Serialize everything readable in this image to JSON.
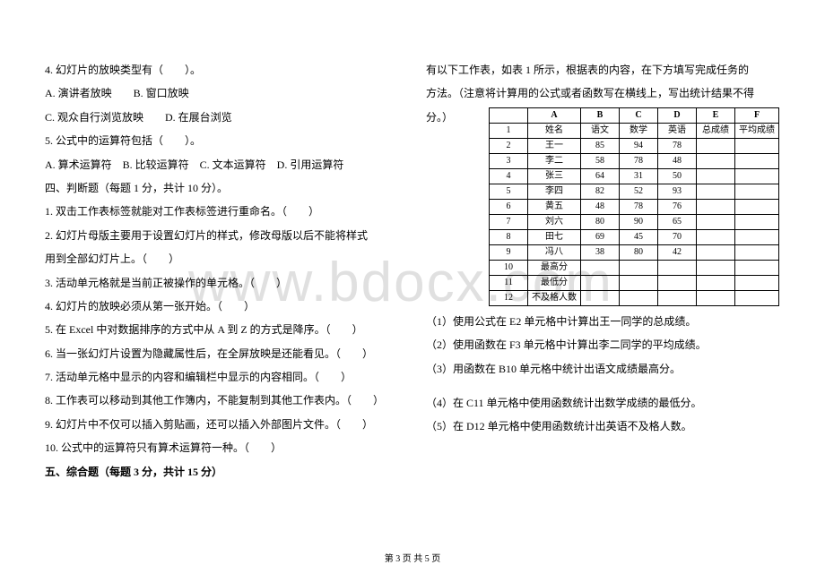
{
  "watermark": "www.bdocx.com",
  "footer": "第 3 页 共 5 页",
  "left": {
    "q4": "4. 幻灯片的放映类型有（　　）。",
    "q4a": "A. 演讲者放映　　B. 窗口放映",
    "q4b": "C. 观众自行浏览放映　　D. 在展台浏览",
    "q5": "5. 公式中的运算符包括（　　）。",
    "q5a": "A. 算术运算符　B. 比较运算符　C. 文本运算符　D. 引用运算符",
    "sec4": "四、判断题（每题 1 分，共计 10 分）。",
    "j1": "1. 双击工作表标签就能对工作表标签进行重命名。（　　）",
    "j2": "2. 幻灯片母版主要用于设置幻灯片的样式，修改母版以后不能将样式",
    "j2b": "用到全部幻灯片上。（　　）",
    "j3": "3. 活动单元格就是当前正被操作的单元格。（　　）",
    "j4": "4. 幻灯片的放映必须从第一张开始。（　　）",
    "j5": "5. 在 Excel 中对数据排序的方式中从 A 到 Z 的方式是降序。（　　）",
    "j6": "6. 当一张幻灯片设置为隐藏属性后，在全屏放映是还能看见。（　　）",
    "j7": "7. 活动单元格中显示的内容和编辑栏中显示的内容相同。（　　）",
    "j8": "8. 工作表可以移动到其他工作簿内，不能复制到其他工作表内。（　　）",
    "j9": "9. 幻灯片中不仅可以插入剪贴画，还可以插入外部图片文件。（　　）",
    "j10": "10. 公式中的运算符只有算术运算符一种。（　　）",
    "sec5": "五、综合题（每题 3 分，共计 15 分）"
  },
  "right": {
    "intro1": "有以下工作表，如表 1 所示，根据表的内容，在下方填写完成任务的",
    "intro2": "方法。（注意将计算用的公式或者函数写在横线上，写出统计结果不得",
    "intro3": "分。）",
    "t1": "（1）使用公式在 E2 单元格中计算出王一同学的总成绩。",
    "t2": "（2）使用函数在 F3 单元格中计算出李二同学的平均成绩。",
    "t3": "（3）用函数在 B10 单元格中统计出语文成绩最高分。",
    "t4": "（4）在 C11 单元格中使用函数统计出数学成绩的最低分。",
    "t5": "（5）在 D12 单元格中使用函数统计出英语不及格人数。"
  },
  "table": {
    "headers": [
      "",
      "A",
      "B",
      "C",
      "D",
      "E",
      "F"
    ],
    "rows": [
      [
        "1",
        "姓名",
        "语文",
        "数学",
        "英语",
        "总成绩",
        "平均成绩"
      ],
      [
        "2",
        "王一",
        "85",
        "94",
        "78",
        "",
        ""
      ],
      [
        "3",
        "李二",
        "58",
        "78",
        "48",
        "",
        ""
      ],
      [
        "4",
        "张三",
        "64",
        "31",
        "50",
        "",
        ""
      ],
      [
        "5",
        "李四",
        "82",
        "52",
        "93",
        "",
        ""
      ],
      [
        "6",
        "黄五",
        "48",
        "78",
        "76",
        "",
        ""
      ],
      [
        "7",
        "刘六",
        "80",
        "90",
        "65",
        "",
        ""
      ],
      [
        "8",
        "田七",
        "69",
        "45",
        "70",
        "",
        ""
      ],
      [
        "9",
        "冯八",
        "38",
        "80",
        "42",
        "",
        ""
      ],
      [
        "10",
        "最高分",
        "",
        "",
        "",
        "",
        ""
      ],
      [
        "11",
        "最低分",
        "",
        "",
        "",
        "",
        ""
      ],
      [
        "12",
        "不及格人数",
        "",
        "",
        "",
        "",
        ""
      ]
    ]
  }
}
